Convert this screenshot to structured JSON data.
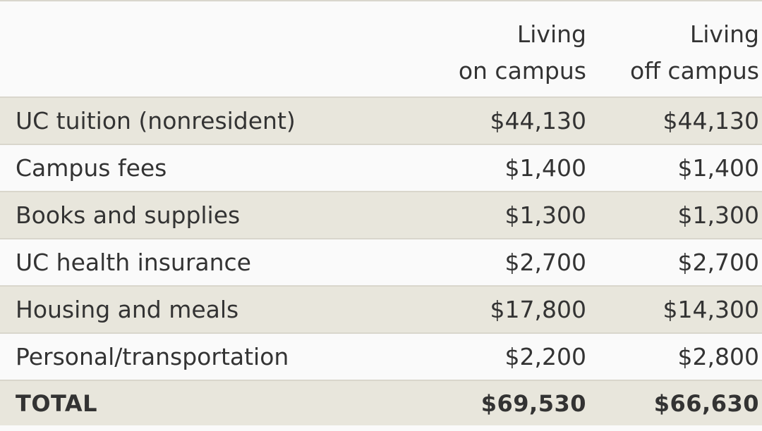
{
  "table": {
    "headers": {
      "on_campus": [
        "Living",
        "on campus"
      ],
      "off_campus": [
        "Living",
        "off campus"
      ]
    },
    "rows": [
      {
        "label": "UC tuition (nonresident)",
        "on_campus": "$44,130",
        "off_campus": "$44,130"
      },
      {
        "label": "Campus fees",
        "on_campus": "$1,400",
        "off_campus": "$1,400"
      },
      {
        "label": "Books and supplies",
        "on_campus": "$1,300",
        "off_campus": "$1,300"
      },
      {
        "label": "UC health insurance",
        "on_campus": "$2,700",
        "off_campus": "$2,700"
      },
      {
        "label": "Housing and meals",
        "on_campus": "$17,800",
        "off_campus": "$14,300"
      },
      {
        "label": "Personal/transportation",
        "on_campus": "$2,200",
        "off_campus": "$2,800"
      }
    ],
    "total": {
      "label": "TOTAL",
      "on_campus": "$69,530",
      "off_campus": "$66,630"
    }
  },
  "colors": {
    "shaded_row": "#e8e6dc",
    "plain_row": "#fafafa",
    "rule": "#d9d6cc",
    "text": "#333333"
  }
}
